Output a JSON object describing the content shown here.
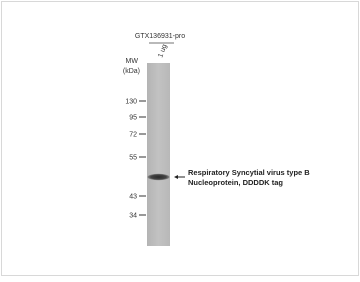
{
  "header": {
    "antibody": "GTX136931-pro",
    "lane": "1 ug"
  },
  "axis": {
    "title_line1": "MW",
    "title_line2": "(kDa)",
    "markers": [
      130,
      95,
      72,
      55,
      43,
      34
    ]
  },
  "annotation": {
    "line1": "Respiratory  Syncytial virus type B",
    "line2": "Nucleoprotein, DDDDK  tag"
  }
}
